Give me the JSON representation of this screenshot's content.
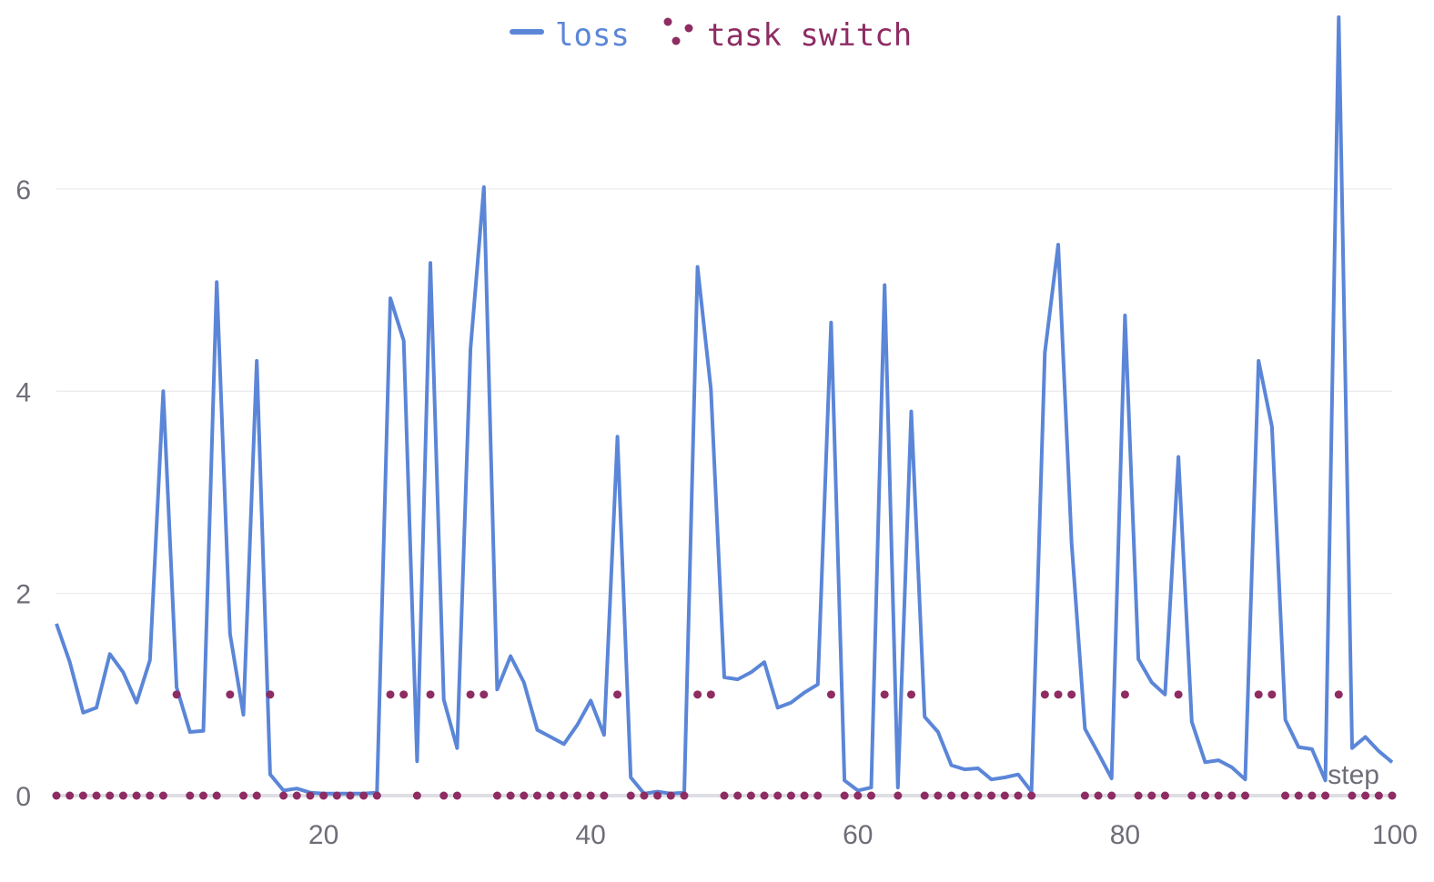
{
  "chart_data": {
    "type": "line",
    "xlabel": "step",
    "ylabel": "",
    "xlim": [
      0,
      100
    ],
    "ylim": [
      0,
      7.6
    ],
    "x_ticks": [
      20,
      40,
      60,
      80,
      100
    ],
    "y_ticks": [
      0,
      2,
      4,
      6
    ],
    "grid": "horizontal",
    "legend_position": "top-center",
    "x": [
      0,
      1,
      2,
      3,
      4,
      5,
      6,
      7,
      8,
      9,
      10,
      11,
      12,
      13,
      14,
      15,
      16,
      17,
      18,
      19,
      20,
      21,
      22,
      23,
      24,
      25,
      26,
      27,
      28,
      29,
      30,
      31,
      32,
      33,
      34,
      35,
      36,
      37,
      38,
      39,
      40,
      41,
      42,
      43,
      44,
      45,
      46,
      47,
      48,
      49,
      50,
      51,
      52,
      53,
      54,
      55,
      56,
      57,
      58,
      59,
      60,
      61,
      62,
      63,
      64,
      65,
      66,
      67,
      68,
      69,
      70,
      71,
      72,
      73,
      74,
      75,
      76,
      77,
      78,
      79,
      80,
      81,
      82,
      83,
      84,
      85,
      86,
      87,
      88,
      89,
      90,
      91,
      92,
      93,
      94,
      95,
      96,
      97,
      98,
      99,
      100
    ],
    "series": [
      {
        "name": "loss",
        "kind": "line",
        "color": "#5b86d8",
        "values": [
          1.7,
          1.32,
          0.82,
          0.87,
          1.4,
          1.22,
          0.92,
          1.34,
          4.0,
          1.07,
          0.63,
          0.64,
          5.08,
          1.6,
          0.8,
          4.3,
          0.21,
          0.05,
          0.07,
          0.03,
          0.02,
          0.02,
          0.02,
          0.02,
          0.03,
          4.92,
          4.5,
          0.34,
          5.27,
          0.95,
          0.47,
          4.42,
          6.02,
          1.05,
          1.38,
          1.12,
          0.65,
          0.58,
          0.51,
          0.7,
          0.94,
          0.6,
          3.55,
          0.18,
          0.02,
          0.04,
          0.02,
          0.03,
          5.23,
          4.02,
          1.17,
          1.15,
          1.22,
          1.32,
          0.87,
          0.92,
          1.02,
          1.1,
          4.68,
          0.15,
          0.05,
          0.08,
          5.05,
          0.08,
          3.8,
          0.78,
          0.63,
          0.3,
          0.26,
          0.27,
          0.16,
          0.18,
          0.21,
          0.04,
          4.38,
          5.45,
          2.5,
          0.66,
          0.42,
          0.17,
          4.75,
          1.35,
          1.12,
          1.0,
          3.35,
          0.73,
          0.33,
          0.35,
          0.28,
          0.16,
          4.3,
          3.65,
          0.75,
          0.48,
          0.46,
          0.15,
          7.7,
          0.47,
          0.58,
          0.44,
          0.33
        ]
      },
      {
        "name": "task switch",
        "kind": "scatter",
        "color": "#8e2c63",
        "values": [
          0,
          0,
          0,
          0,
          0,
          0,
          0,
          0,
          0,
          1,
          0,
          0,
          0,
          1,
          0,
          0,
          1,
          0,
          0,
          0,
          0,
          0,
          0,
          0,
          0,
          1,
          1,
          0,
          1,
          0,
          0,
          1,
          1,
          0,
          0,
          0,
          0,
          0,
          0,
          0,
          0,
          0,
          1,
          0,
          0,
          0,
          0,
          0,
          1,
          1,
          0,
          0,
          0,
          0,
          0,
          0,
          0,
          0,
          1,
          0,
          0,
          0,
          1,
          0,
          1,
          0,
          0,
          0,
          0,
          0,
          0,
          0,
          0,
          0,
          1,
          1,
          1,
          0,
          0,
          0,
          1,
          0,
          0,
          0,
          1,
          0,
          0,
          0,
          0,
          0,
          1,
          1,
          0,
          0,
          0,
          0,
          1,
          0,
          0,
          0,
          0
        ]
      }
    ]
  }
}
